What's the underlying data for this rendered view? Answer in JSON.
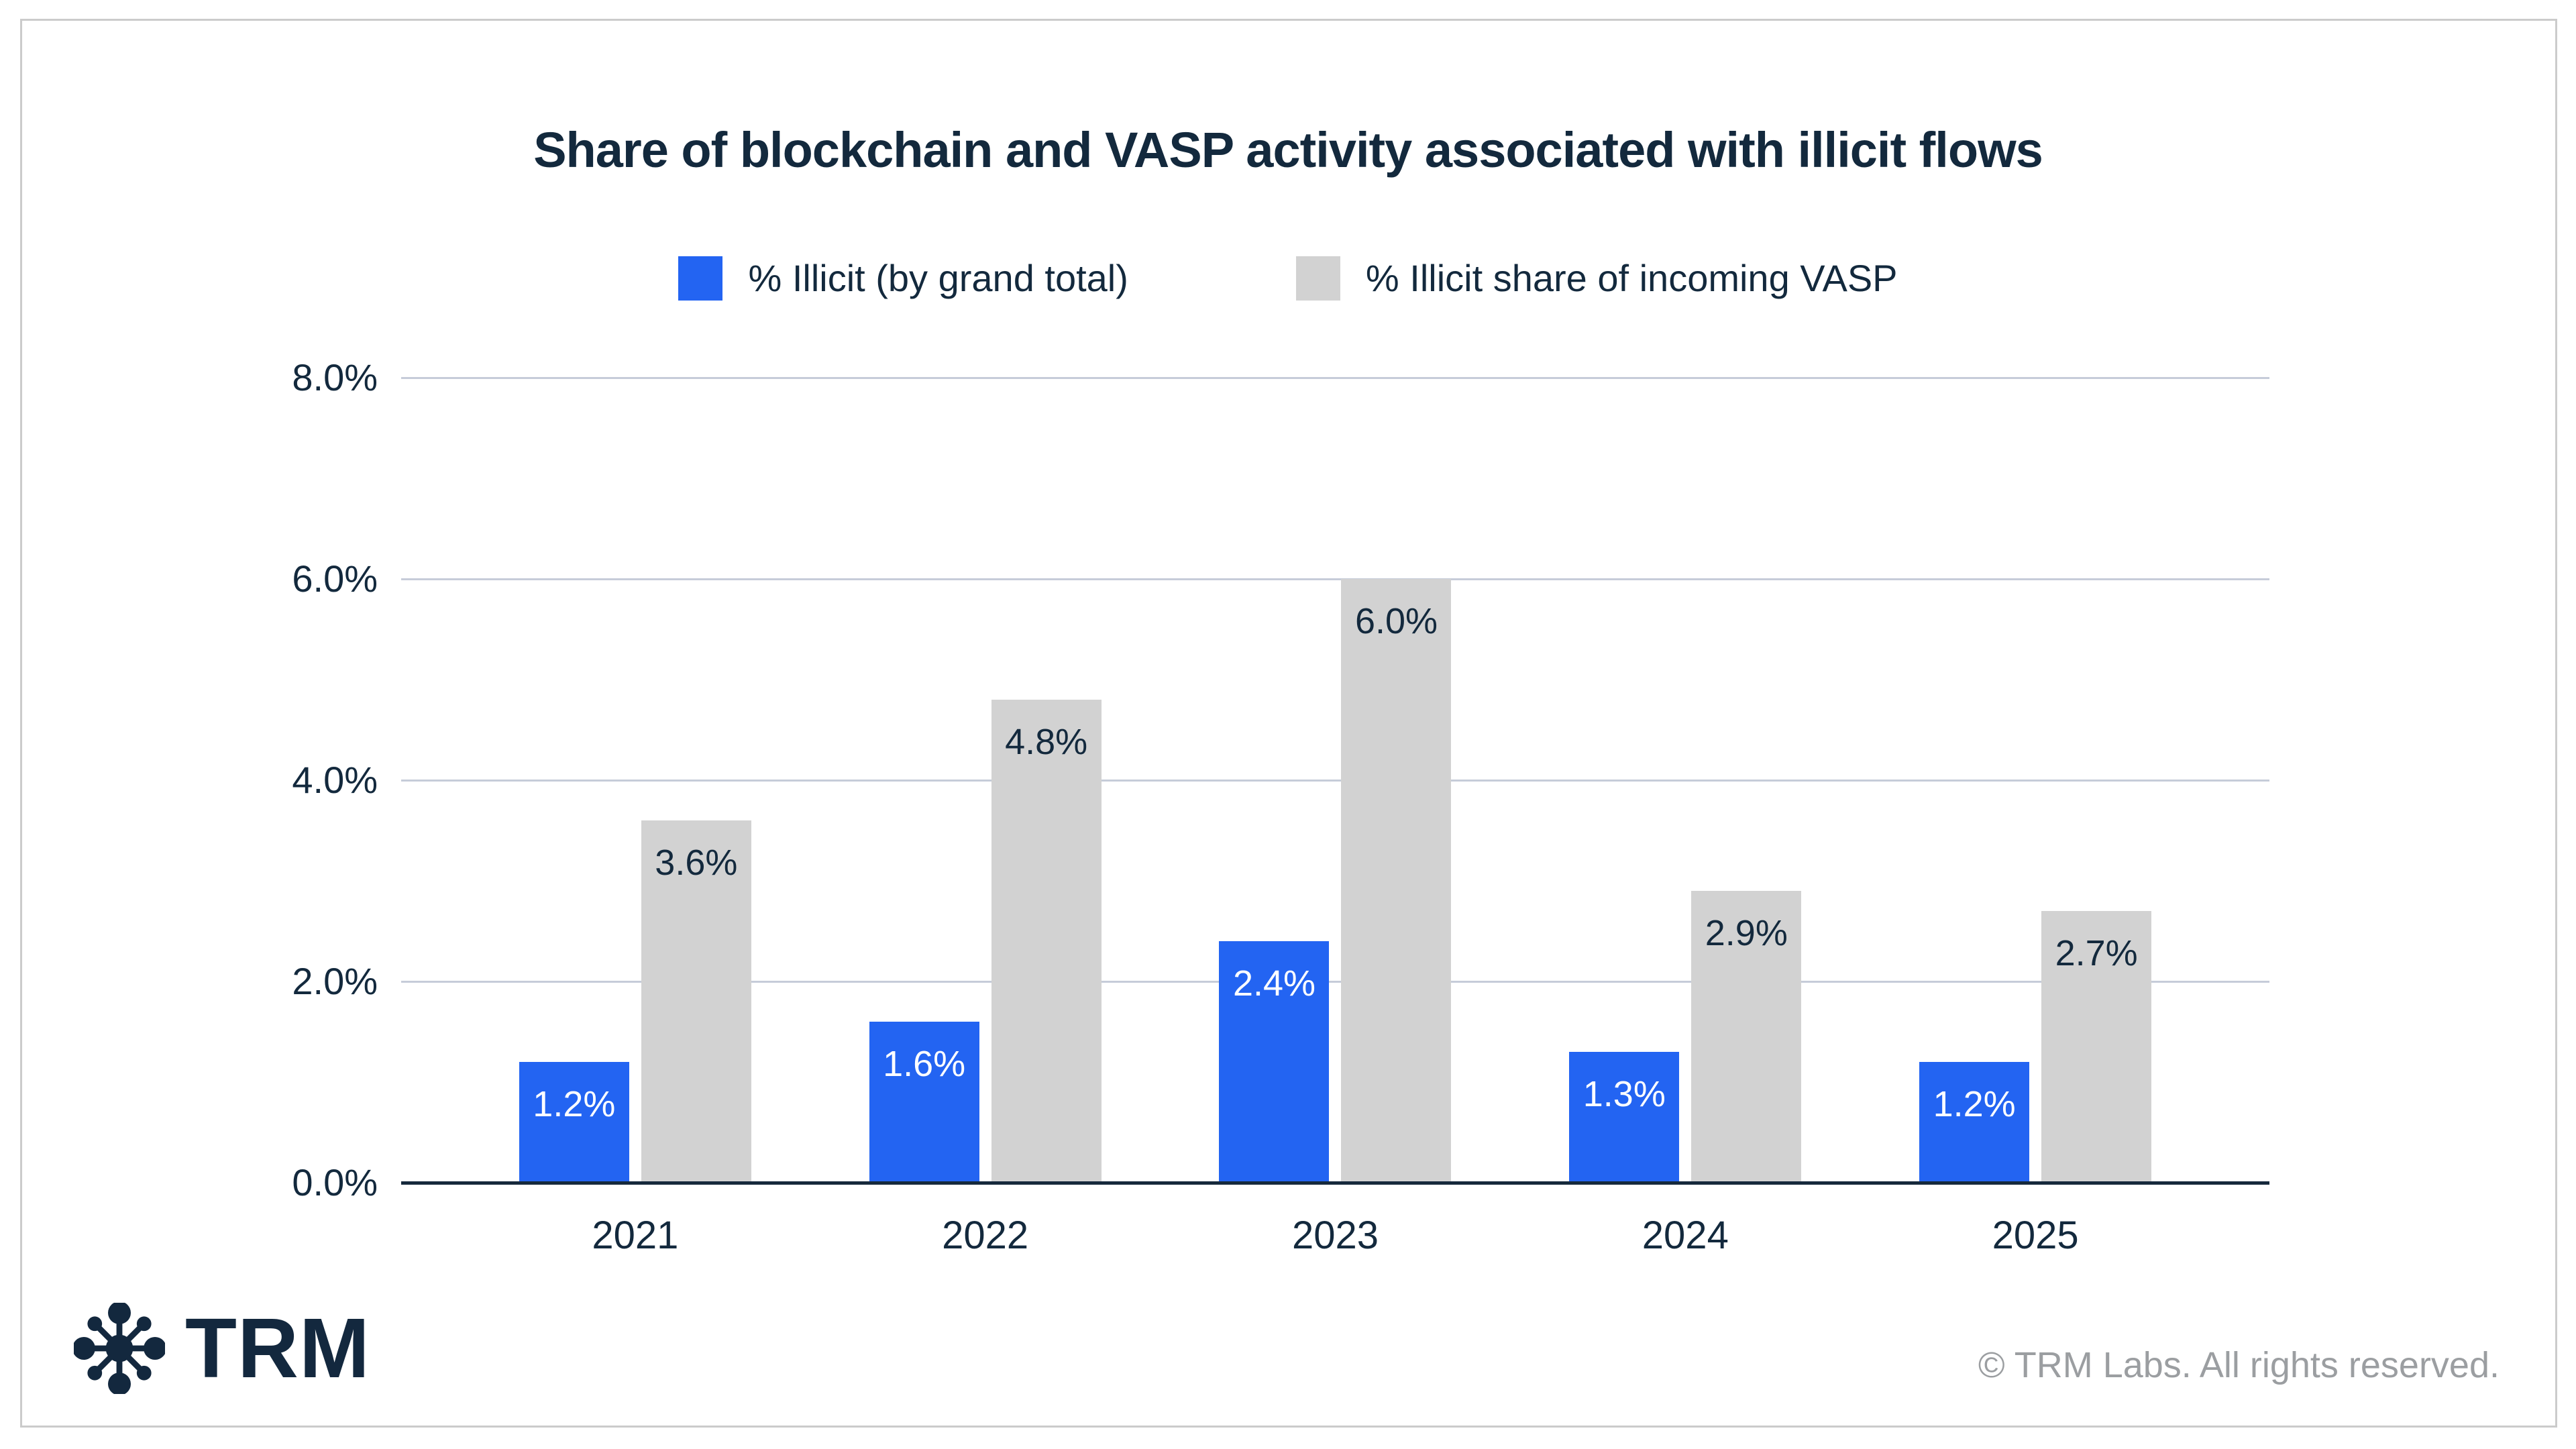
{
  "title": "Share of blockchain and VASP activity associated with illicit flows",
  "legend": [
    {
      "label": "% Illicit (by grand total)",
      "color": "#2364F2"
    },
    {
      "label": "% Illicit share of incoming VASP",
      "color": "#D2D2D2"
    }
  ],
  "chart_data": {
    "type": "bar",
    "title": "Share of blockchain and VASP activity associated with illicit flows",
    "categories": [
      "2021",
      "2022",
      "2023",
      "2024",
      "2025"
    ],
    "series": [
      {
        "name": "% Illicit (by grand total)",
        "color": "#2364F2",
        "values": [
          1.2,
          1.6,
          2.4,
          1.3,
          1.2
        ],
        "labels": [
          "1.2%",
          "1.6%",
          "2.4%",
          "1.3%",
          "1.2%"
        ],
        "label_color": "#FFFFFF"
      },
      {
        "name": "% Illicit share of incoming VASP",
        "color": "#D2D2D2",
        "values": [
          3.6,
          4.8,
          6.0,
          2.9,
          2.7
        ],
        "labels": [
          "3.6%",
          "4.8%",
          "6.0%",
          "2.9%",
          "2.7%"
        ],
        "label_color": "#13293D"
      }
    ],
    "xlabel": "",
    "ylabel": "",
    "ylim": [
      0,
      8
    ],
    "yticks": [
      0,
      2,
      4,
      6,
      8
    ],
    "ytick_labels": [
      "0.0%",
      "2.0%",
      "4.0%",
      "6.0%",
      "8.0%"
    ],
    "grid": true,
    "legend_position": "top"
  },
  "footer": {
    "brand": "TRM",
    "copyright": "© TRM Labs. All rights reserved."
  },
  "colors": {
    "accent_blue": "#2364F2",
    "bar_gray": "#D2D2D2",
    "dark_navy": "#13293D",
    "gridline": "#C6CCD9",
    "baseline": "#16293C",
    "copyright_gray": "#9B9EA1",
    "card_border": "#CBCBCB",
    "background": "#FFFFFF"
  }
}
